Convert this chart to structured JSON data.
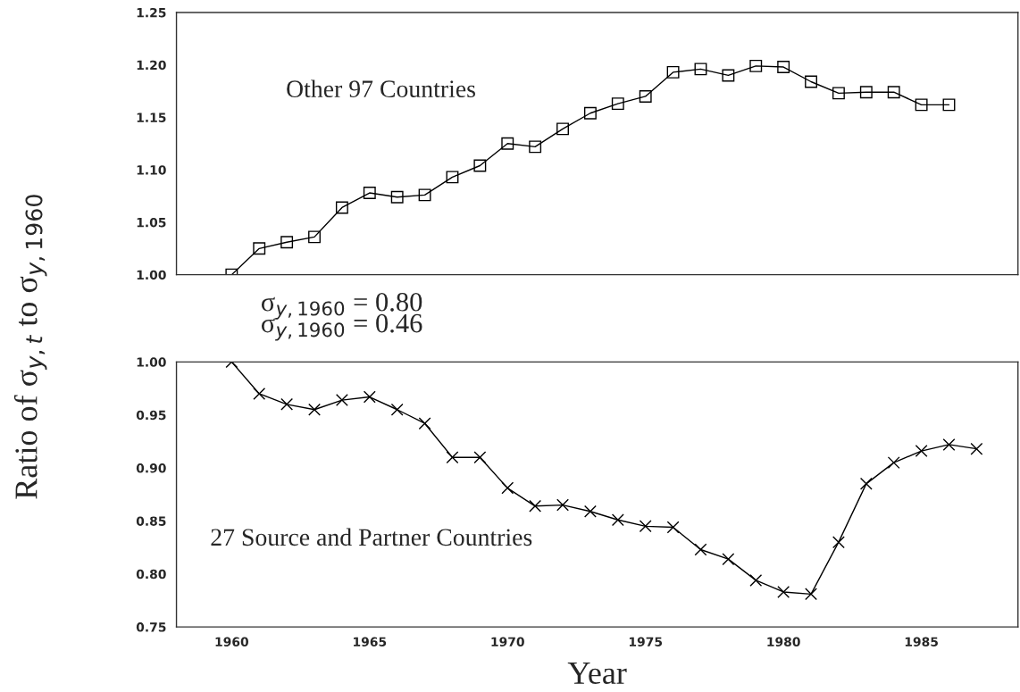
{
  "chart_data": [
    {
      "type": "line",
      "ylabel": "Ratio of σ$_{y,t}$ to σ$_{y,1960}$",
      "x": [
        1960,
        1961,
        1962,
        1963,
        1964,
        1965,
        1966,
        1967,
        1968,
        1969,
        1970,
        1971,
        1972,
        1973,
        1974,
        1975,
        1976,
        1977,
        1978,
        1979,
        1980,
        1981,
        1982,
        1983,
        1984,
        1985,
        1986
      ],
      "series": [
        {
          "color": "#000000",
          "values": [
            1.0,
            1.025,
            1.031,
            1.036,
            1.064,
            1.078,
            1.074,
            1.076,
            1.093,
            1.104,
            1.125,
            1.122,
            1.139,
            1.154,
            1.163,
            1.17,
            1.193,
            1.196,
            1.19,
            1.199,
            1.198,
            1.184,
            1.173,
            1.174,
            1.174,
            1.162,
            1.162
          ]
        }
      ],
      "xlim": [
        1958,
        1988.5
      ],
      "ylim": [
        1.0,
        1.25
      ],
      "yticks": [
        {
          "value": 1.0,
          "label": "1.00"
        },
        {
          "value": 1.05,
          "label": "1.05"
        },
        {
          "value": 1.1,
          "label": "1.10"
        },
        {
          "value": 1.15,
          "label": "1.15"
        },
        {
          "value": 1.2,
          "label": "1.20"
        },
        {
          "value": 1.25,
          "label": "1.25"
        }
      ],
      "tick_labels": "y",
      "marker": "square",
      "line_style": "solid",
      "grid": false,
      "legend": false,
      "annotations": [
        "Other 97 Countries",
        "σ$_{y,1960}$ = 0.80"
      ]
    },
    {
      "type": "line",
      "xlabel": "Year",
      "x": [
        1960,
        1961,
        1962,
        1963,
        1964,
        1965,
        1966,
        1967,
        1968,
        1969,
        1970,
        1971,
        1972,
        1973,
        1974,
        1975,
        1976,
        1977,
        1978,
        1979,
        1980,
        1981,
        1982,
        1983,
        1984,
        1985,
        1986,
        1987
      ],
      "series": [
        {
          "color": "#000000",
          "values": [
            1.0,
            0.97,
            0.96,
            0.955,
            0.964,
            0.967,
            0.955,
            0.942,
            0.91,
            0.91,
            0.881,
            0.864,
            0.865,
            0.859,
            0.851,
            0.845,
            0.844,
            0.823,
            0.814,
            0.794,
            0.783,
            0.781,
            0.83,
            0.885,
            0.905,
            0.916,
            0.922,
            0.918
          ]
        }
      ],
      "xlim": [
        1958,
        1988.5
      ],
      "ylim": [
        0.75,
        1.0
      ],
      "xticks": [
        1960,
        1965,
        1970,
        1975,
        1980,
        1985
      ],
      "yticks": [
        {
          "value": 0.75,
          "label": "0.75"
        },
        {
          "value": 0.8,
          "label": "0.80"
        },
        {
          "value": 0.85,
          "label": "0.85"
        },
        {
          "value": 0.9,
          "label": "0.90"
        },
        {
          "value": 0.95,
          "label": "0.95"
        },
        {
          "value": 1.0,
          "label": "1.00"
        }
      ],
      "marker": "cross",
      "line_style": "solid",
      "grid": false,
      "legend": false,
      "annotations": [
        "σ$_{y,1960}$ = 0.46",
        "27 Source and Partner Countries"
      ]
    }
  ]
}
